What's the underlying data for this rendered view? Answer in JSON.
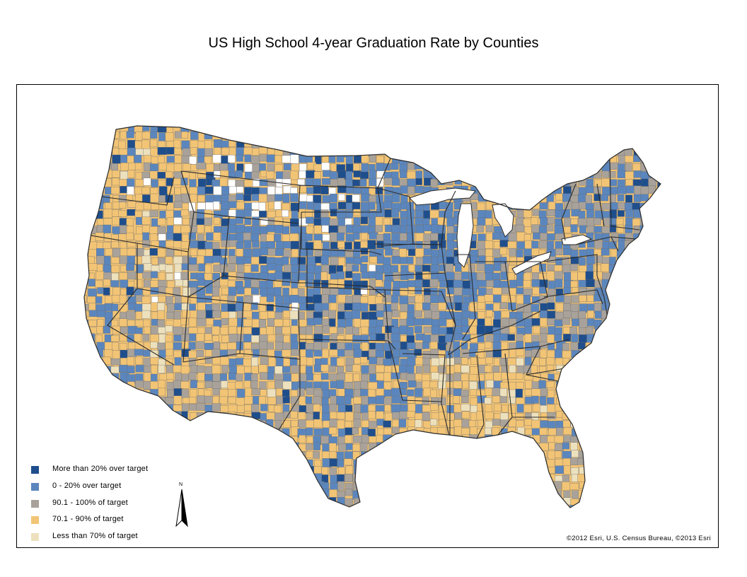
{
  "title": "US High School 4-year Graduation Rate by Counties",
  "credits": "©2012 Esri, U.S. Census Bureau, ©2013 Esri",
  "north_label": "N",
  "colors": {
    "more_than_20_over": "#1f4e8c",
    "zero_to_20_over": "#5b86bd",
    "ninety_to_100": "#a9a29a",
    "seventy_to_90": "#f2c475",
    "less_than_70": "#ede1bd",
    "no_data": "#ffffff",
    "boundary": "#2b2b2b"
  },
  "legend": [
    {
      "label": "More than 20% over target",
      "color_key": "more_than_20_over"
    },
    {
      "label": "0 - 20% over target",
      "color_key": "zero_to_20_over"
    },
    {
      "label": "90.1 - 100% of target",
      "color_key": "ninety_to_100"
    },
    {
      "label": "70.1 - 90% of target",
      "color_key": "seventy_to_90"
    },
    {
      "label": "Less than 70% of target",
      "color_key": "less_than_70"
    }
  ]
}
